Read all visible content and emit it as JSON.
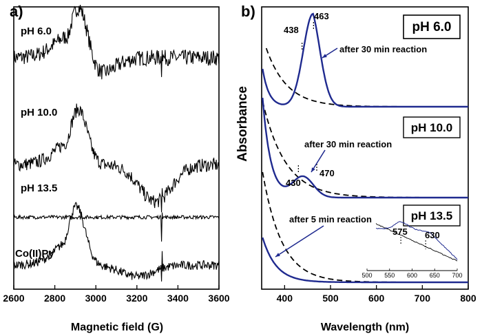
{
  "colors": {
    "blue": "#1f2a8f",
    "black": "#000000"
  },
  "chart_data": [
    {
      "panel": "a)",
      "type": "line",
      "title": "",
      "xlabel": "Magnetic field (G)",
      "ylabel": "",
      "xlim": [
        2600,
        3600
      ],
      "xticks": [
        "2600",
        "2800",
        "3000",
        "3200",
        "3400",
        "3600"
      ],
      "series": [
        {
          "name": "pH 6.0",
          "baseline": 0.82,
          "peak_field": 2920,
          "peak_amp": 0.23,
          "trough_field": 3010,
          "trough_amp": -0.06,
          "noise": 0.035,
          "spike_field": 3320
        },
        {
          "name": "pH 10.0",
          "baseline": 0.44,
          "peak_field": 2915,
          "peak_amp": 0.22,
          "trough_field": 3290,
          "trough_amp": -0.13,
          "noise": 0.03,
          "spike_field": 3320
        },
        {
          "name": "pH 13.5",
          "baseline": 0.255,
          "peak_field": 2920,
          "peak_amp": 0.0,
          "trough_field": 3000,
          "trough_amp": 0.0,
          "noise": 0.008,
          "spike_field": 3320
        },
        {
          "name": "Co(II)Py",
          "baseline": 0.085,
          "peak_field": 2905,
          "peak_amp": 0.23,
          "trough_field": 3200,
          "trough_amp": -0.04,
          "noise": 0.02,
          "spike_field": 3320
        }
      ]
    },
    {
      "panel": "b)",
      "type": "line",
      "title": "",
      "xlabel": "Wavelength (nm)",
      "ylabel": "Absorbance",
      "xlim": [
        350,
        800
      ],
      "xticks": [
        "400",
        "500",
        "600",
        "700",
        "800"
      ],
      "groups": [
        {
          "name": "pH 6.0",
          "solid_label": "after 30 min reaction",
          "solid_shape": "peak",
          "peaks_nm": [
            438,
            463
          ],
          "peak_labels": [
            "438",
            "463"
          ],
          "arrow_label": "after 30 min reaction"
        },
        {
          "name": "pH 10.0",
          "solid_shape": "shoulder",
          "peaks_nm": [
            430,
            470
          ],
          "peak_labels": [
            "430",
            "470"
          ],
          "arrow_label": "after 30 min reaction"
        },
        {
          "name": "pH 13.5",
          "solid_shape": "decay",
          "arrow_label": "after 5 min reaction",
          "inset": {
            "xlim": [
              500,
              700
            ],
            "xticks": [
              "500",
              "550",
              "600",
              "650",
              "700"
            ],
            "peaks_nm": [
              575,
              630
            ],
            "peak_labels": [
              "575",
              "630"
            ]
          }
        }
      ]
    }
  ]
}
